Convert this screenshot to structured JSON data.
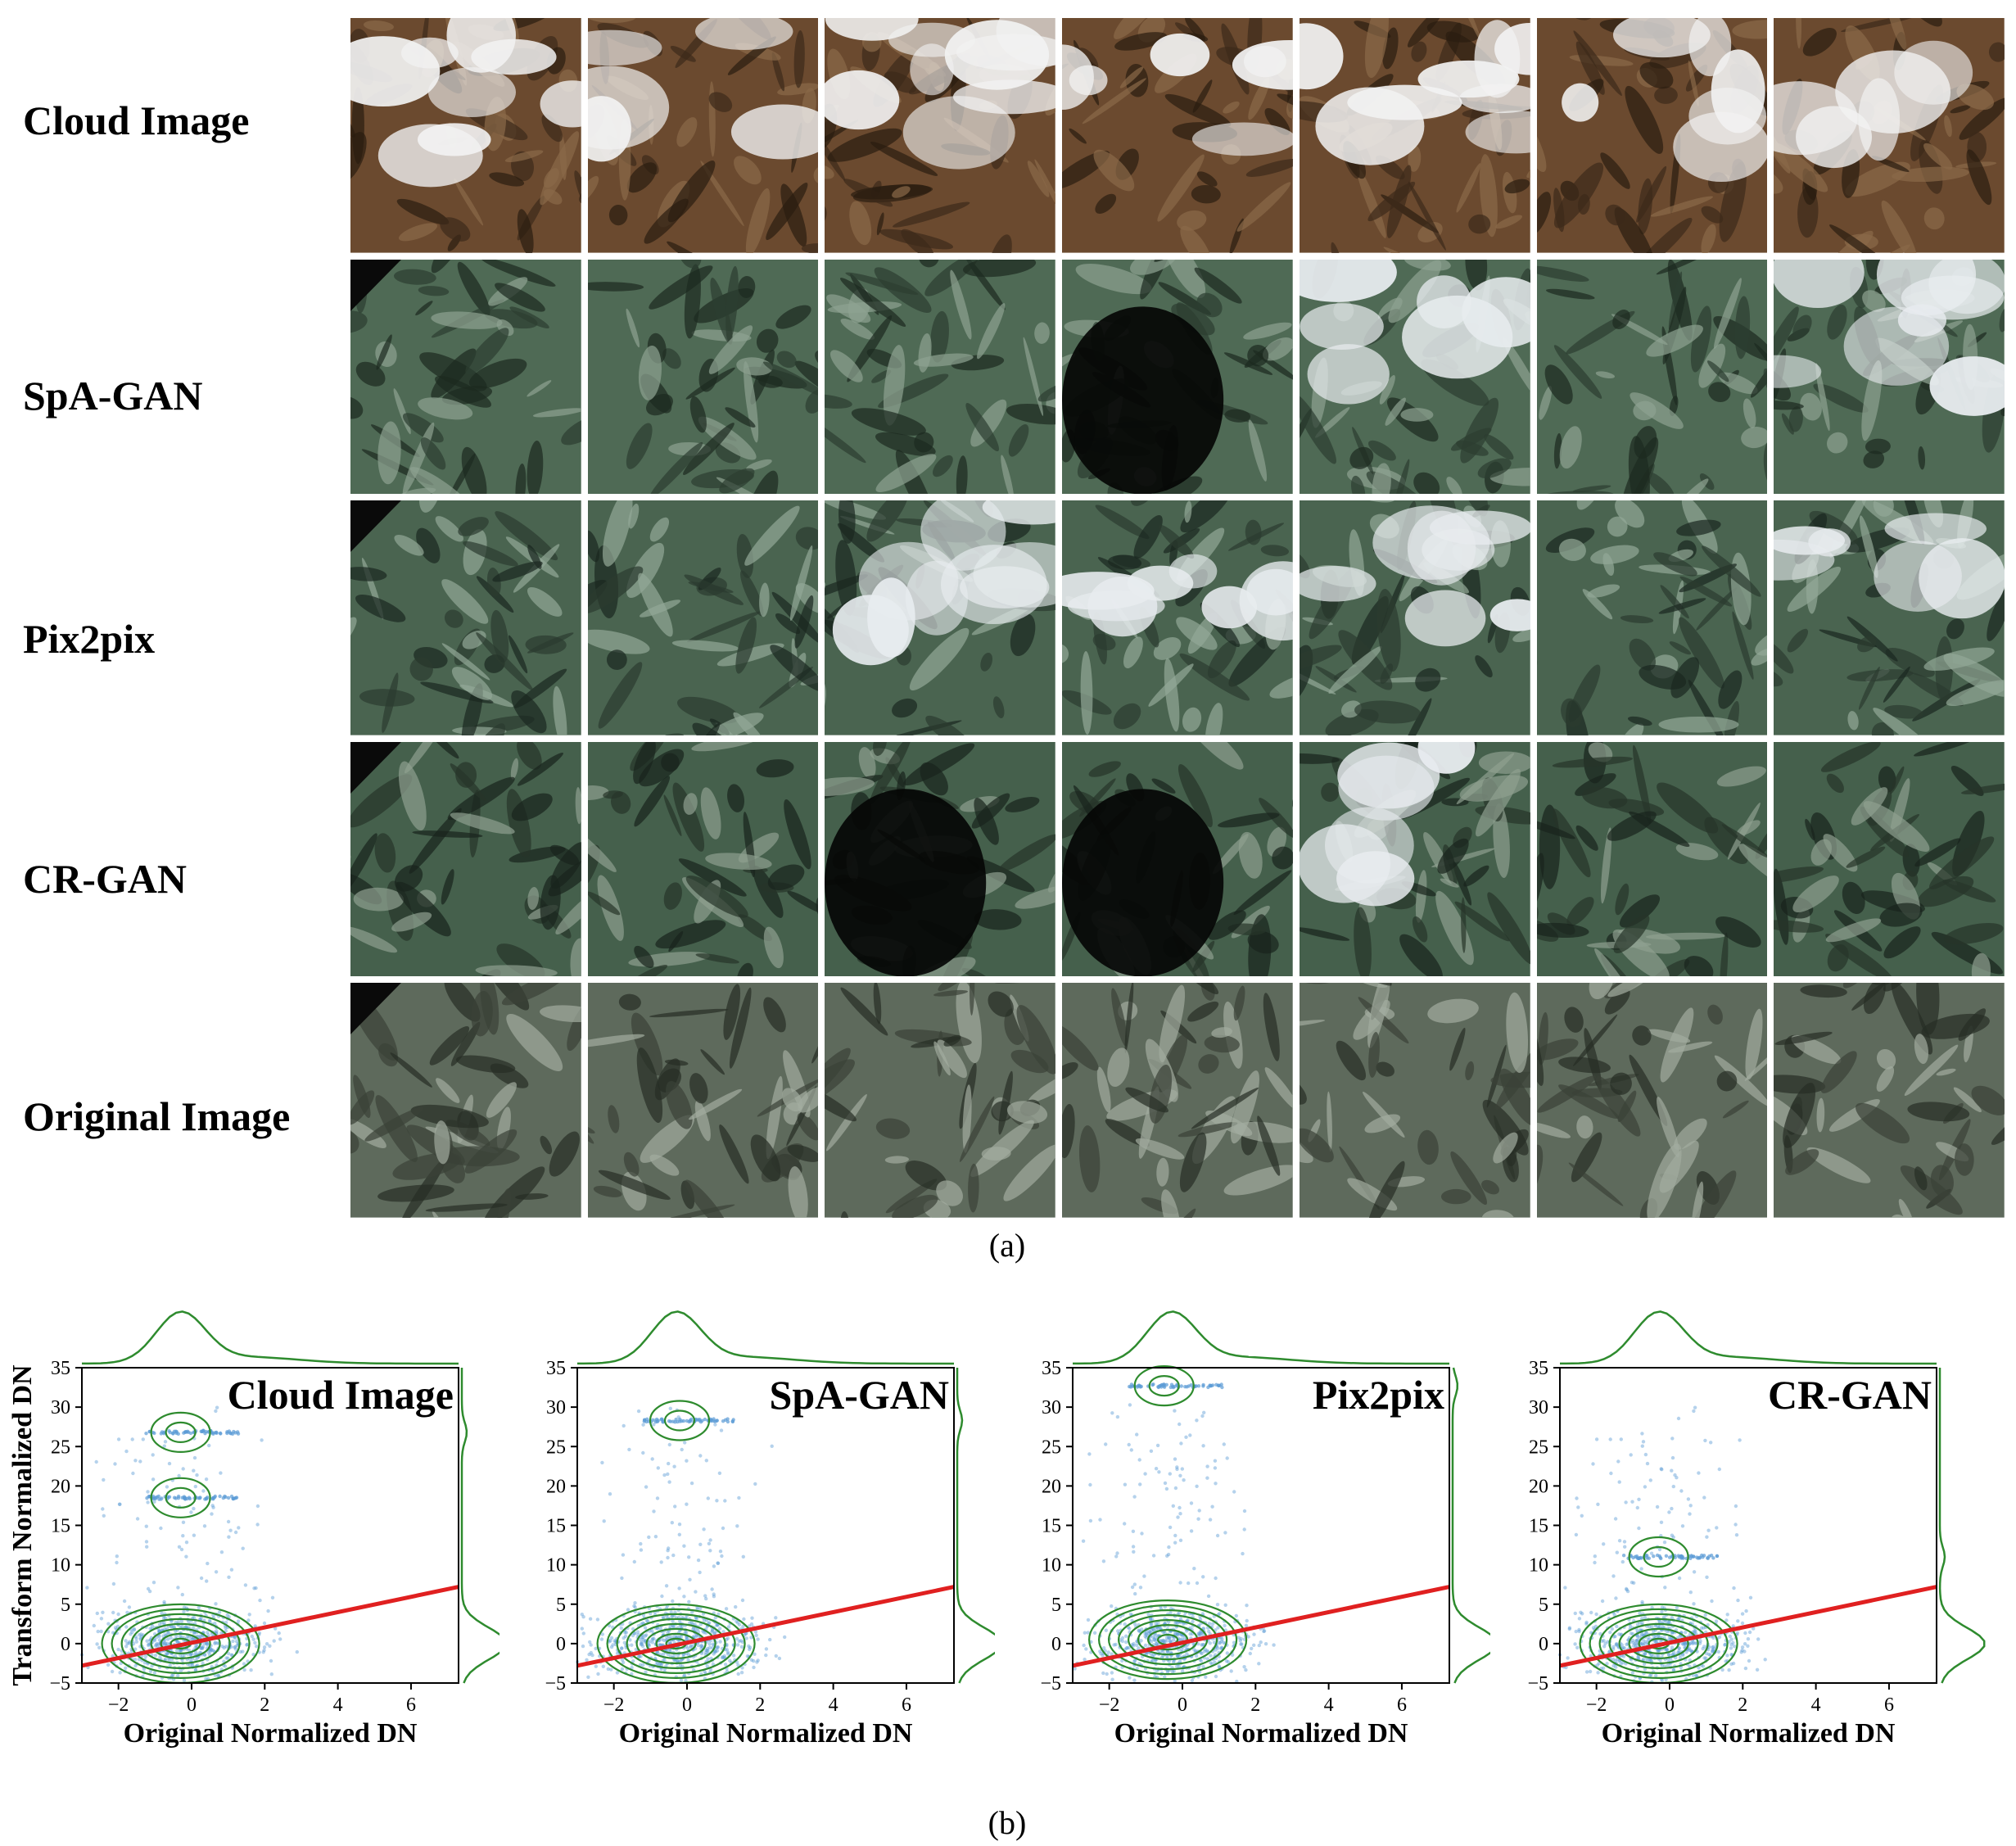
{
  "panel_a": {
    "rows": [
      "Cloud Image",
      "SpA-GAN",
      "Pix2pix",
      "CR-GAN",
      "Original Image"
    ],
    "columns": 7,
    "caption": "(a)"
  },
  "panel_b": {
    "caption": "(b)"
  },
  "colors": {
    "scatter": "#5b9bd5",
    "contour": "#2e8b2e",
    "fit_line": "#e02020"
  },
  "chart_data": [
    {
      "type": "scatter",
      "title": "Cloud Image",
      "xlabel": "Original Normalized DN",
      "ylabel": "Transform Normalized DN",
      "xlim": [
        -3,
        7.3
      ],
      "ylim": [
        -5,
        35
      ],
      "xticks": [
        "−2",
        "0",
        "2",
        "4",
        "6"
      ],
      "yticks": [
        "−5",
        "0",
        "5",
        "10",
        "15",
        "20",
        "25",
        "30",
        "35"
      ],
      "fit_line": {
        "x": [
          -3,
          7.3
        ],
        "y": [
          -2.8,
          7.2
        ]
      },
      "clusters": [
        {
          "x": -0.3,
          "y": 26.8,
          "label": "dense band"
        },
        {
          "x": -0.3,
          "y": 18.5,
          "label": "dense band"
        },
        {
          "x": -0.3,
          "y": 0,
          "label": "core"
        }
      ]
    },
    {
      "type": "scatter",
      "title": "SpA-GAN",
      "xlabel": "Original Normalized DN",
      "ylabel": "",
      "xlim": [
        -3,
        7.3
      ],
      "ylim": [
        -5,
        35
      ],
      "xticks": [
        "−2",
        "0",
        "2",
        "4",
        "6"
      ],
      "yticks": [
        "−5",
        "0",
        "5",
        "10",
        "15",
        "20",
        "25",
        "30",
        "35"
      ],
      "fit_line": {
        "x": [
          -3,
          7.3
        ],
        "y": [
          -2.8,
          7.2
        ]
      },
      "clusters": [
        {
          "x": -0.2,
          "y": 28.3,
          "label": "dense band"
        },
        {
          "x": -0.3,
          "y": 0,
          "label": "core"
        }
      ]
    },
    {
      "type": "scatter",
      "title": "Pix2pix",
      "xlabel": "Original Normalized DN",
      "ylabel": "",
      "xlim": [
        -3,
        7.3
      ],
      "ylim": [
        -5,
        35
      ],
      "xticks": [
        "−2",
        "0",
        "2",
        "4",
        "6"
      ],
      "yticks": [
        "−5",
        "0",
        "5",
        "10",
        "15",
        "20",
        "25",
        "30",
        "35"
      ],
      "fit_line": {
        "x": [
          -3,
          7.3
        ],
        "y": [
          -2.8,
          7.2
        ]
      },
      "clusters": [
        {
          "x": -0.5,
          "y": 32.7,
          "label": "dense band"
        },
        {
          "x": -0.4,
          "y": 0.5,
          "label": "core"
        }
      ]
    },
    {
      "type": "scatter",
      "title": "CR-GAN",
      "xlabel": "Original Normalized DN",
      "ylabel": "",
      "xlim": [
        -3,
        7.3
      ],
      "ylim": [
        -5,
        35
      ],
      "xticks": [
        "−2",
        "0",
        "2",
        "4",
        "6"
      ],
      "yticks": [
        "−5",
        "0",
        "5",
        "10",
        "15",
        "20",
        "25",
        "30",
        "35"
      ],
      "fit_line": {
        "x": [
          -3,
          7.3
        ],
        "y": [
          -2.8,
          7.2
        ]
      },
      "clusters": [
        {
          "x": -0.3,
          "y": 11,
          "label": "dense band"
        },
        {
          "x": -0.3,
          "y": 0,
          "label": "core"
        }
      ]
    }
  ]
}
